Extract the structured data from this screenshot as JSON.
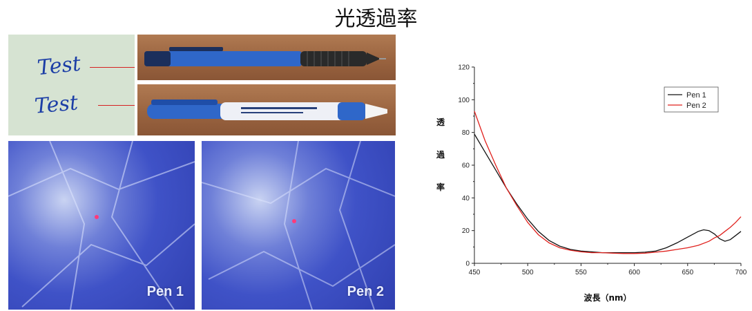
{
  "title": "光透過率",
  "photos": {
    "note_words": [
      "Test",
      "Test"
    ],
    "micro_labels": [
      "Pen 1",
      "Pen 2"
    ]
  },
  "chart_data": {
    "type": "line",
    "ylabel_chars": [
      "透",
      "過",
      "率"
    ],
    "xlabel": "波長（nm）",
    "xlim": [
      450,
      700
    ],
    "ylim": [
      0,
      120
    ],
    "xticks": [
      450,
      500,
      550,
      600,
      650,
      700
    ],
    "yticks": [
      0,
      20,
      40,
      60,
      80,
      100,
      120
    ],
    "legend_position": "top-right",
    "grid": false,
    "series": [
      {
        "name": "Pen 1",
        "color": "#111111",
        "x": [
          450,
          460,
          470,
          480,
          490,
          500,
          510,
          520,
          530,
          540,
          550,
          560,
          570,
          580,
          590,
          600,
          610,
          620,
          630,
          640,
          650,
          660,
          665,
          670,
          675,
          680,
          685,
          690,
          695,
          700
        ],
        "y": [
          79,
          68,
          57,
          46,
          36,
          27,
          19.5,
          14,
          10.5,
          8.5,
          7.5,
          7,
          6.5,
          6.5,
          6.5,
          6.5,
          6.8,
          7.5,
          9.5,
          12.5,
          16,
          19.5,
          20.5,
          20,
          18,
          15,
          13.5,
          14.5,
          17,
          19.5
        ]
      },
      {
        "name": "Pen 2",
        "color": "#e0201c",
        "x": [
          450,
          460,
          470,
          480,
          490,
          500,
          510,
          520,
          530,
          540,
          550,
          560,
          570,
          580,
          590,
          600,
          610,
          620,
          630,
          640,
          650,
          660,
          670,
          675,
          680,
          685,
          690,
          695,
          700
        ],
        "y": [
          93,
          75,
          60,
          46,
          35,
          25,
          17.5,
          12.5,
          9.5,
          8,
          7,
          6.5,
          6.5,
          6.2,
          6,
          6,
          6.2,
          6.8,
          7.5,
          8.5,
          9.5,
          11,
          13.5,
          15.5,
          17,
          19.5,
          22,
          25,
          28.5
        ]
      }
    ]
  }
}
